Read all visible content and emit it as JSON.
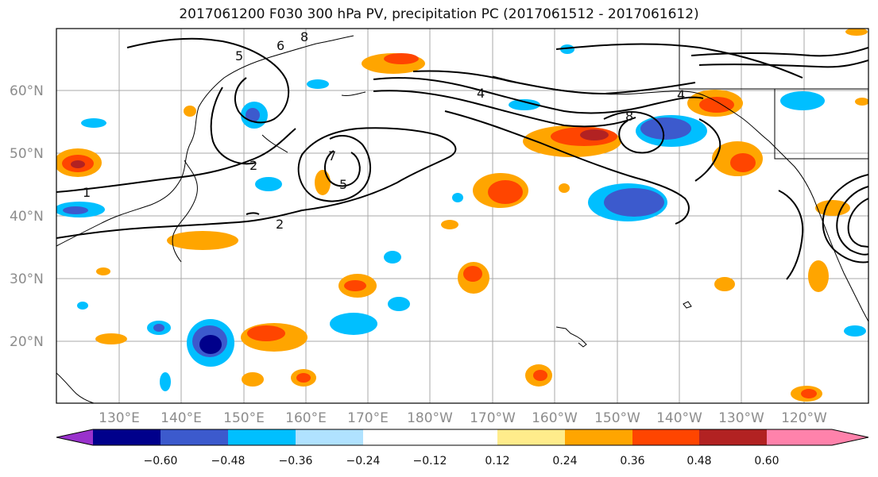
{
  "title": "2017061200 F030 300 hPa PV, precipitation PC (2017061512 - 2017061612)",
  "map": {
    "lat_labels": [
      "60°N",
      "50°N",
      "40°N",
      "30°N",
      "20°N"
    ],
    "lon_labels": [
      "130°E",
      "140°E",
      "150°E",
      "160°E",
      "170°E",
      "180°W",
      "170°W",
      "160°W",
      "150°W",
      "140°W",
      "130°W",
      "120°W"
    ],
    "pv_contour_labels": [
      "1",
      "2",
      "2",
      "4",
      "5",
      "5",
      "6",
      "7",
      "8",
      "8",
      "4"
    ]
  },
  "colorbar": {
    "ticks": [
      "−0.60",
      "−0.48",
      "−0.36",
      "−0.24",
      "−0.12",
      "0.12",
      "0.24",
      "0.36",
      "0.48",
      "0.60"
    ],
    "colors": [
      "#9932cc",
      "#00008b",
      "#3c5acd",
      "#00bfff",
      "#b0e2ff",
      "#ffffff",
      "#ffec8b",
      "#ffa500",
      "#ff4500",
      "#b22222",
      "#ff82ab"
    ]
  }
}
